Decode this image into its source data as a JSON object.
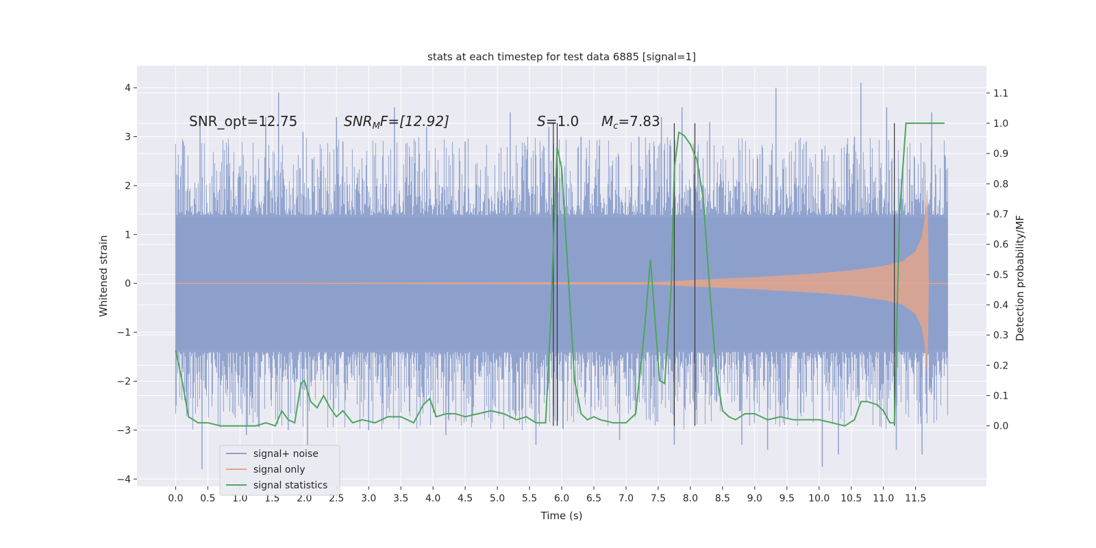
{
  "chart_data": {
    "type": "line",
    "title": "stats at each timestep for test data 6885 [signal=1]",
    "xlabel": "Time (s)",
    "ylabel": "Whitened strain",
    "ylabel_right": "Detection probability/MF",
    "xlim": [
      -0.6,
      12.6
    ],
    "ylim": [
      -4.15,
      4.45
    ],
    "ylim_right": [
      -0.2,
      1.19
    ],
    "x_ticks": [
      0.0,
      0.5,
      1.0,
      1.5,
      2.0,
      2.5,
      3.0,
      3.5,
      4.0,
      4.5,
      5.0,
      5.5,
      6.0,
      6.5,
      7.0,
      7.5,
      8.0,
      8.5,
      9.0,
      9.5,
      10.0,
      10.5,
      11.0,
      11.5
    ],
    "x_tick_labels": [
      "0.0",
      "0.5",
      "1.0",
      "1.5",
      "2.0",
      "2.5",
      "3.0",
      "3.5",
      "4.0",
      "4.5",
      "5.0",
      "5.5",
      "6.0",
      "6.5",
      "7.0",
      "7.5",
      "8.0",
      "8.5",
      "9.0",
      "9.5",
      "10.0",
      "10.5",
      "11.0",
      "11.5"
    ],
    "y_ticks": [
      -4,
      -3,
      -2,
      -1,
      0,
      1,
      2,
      3,
      4
    ],
    "y_tick_labels": [
      "−4",
      "−3",
      "−2",
      "−1",
      "0",
      "1",
      "2",
      "3",
      "4"
    ],
    "y_right_ticks": [
      0.0,
      0.1,
      0.2,
      0.3,
      0.4,
      0.5,
      0.6,
      0.7,
      0.8,
      0.9,
      1.0,
      1.1
    ],
    "y_right_tick_labels": [
      "0.0",
      "0.1",
      "0.2",
      "0.3",
      "0.4",
      "0.5",
      "0.6",
      "0.7",
      "0.8",
      "0.9",
      "1.0",
      "1.1"
    ],
    "grid": true,
    "legend_position": "lower-left",
    "annotations": {
      "snr_opt": "SNR_opt=12.75",
      "snr_mf_base": "SNR",
      "snr_mf_sub": "M",
      "snr_mf_rest": "F=[12.92]",
      "s_sym": "S",
      "s_rest": "=1.0",
      "mc_sym": "M",
      "mc_sub": "c",
      "mc_rest": "=7.83"
    },
    "vertical_lines_x": [
      5.87,
      5.93,
      7.75,
      8.07,
      11.17
    ],
    "series": [
      {
        "name": "signal+ noise",
        "color": "#8da0cb",
        "axis": "left",
        "x_range": [
          0.0,
          12.0
        ],
        "core_band": [
          -1.35,
          1.35
        ],
        "spike_x": [
          0.12,
          0.38,
          0.41,
          0.82,
          1.1,
          1.4,
          1.6,
          1.75,
          1.98,
          2.05,
          2.5,
          2.6,
          3.0,
          3.4,
          3.9,
          4.2,
          4.5,
          5.2,
          5.6,
          5.8,
          6.3,
          6.9,
          7.2,
          7.55,
          7.75,
          7.87,
          8.3,
          8.8,
          9.2,
          9.33,
          9.8,
          10.05,
          10.3,
          10.55,
          10.65,
          11.05,
          11.2,
          11.6,
          11.75
        ],
        "spike_y": [
          2.9,
          3.4,
          -3.8,
          2.8,
          -3.1,
          3.4,
          3.9,
          -3.0,
          3.1,
          -3.3,
          3.4,
          2.9,
          -3.0,
          3.6,
          3.2,
          -3.1,
          2.9,
          3.5,
          -3.3,
          3.2,
          3.0,
          -3.2,
          3.0,
          3.4,
          -3.3,
          3.6,
          3.3,
          -3.3,
          -3.4,
          4.0,
          2.9,
          -3.75,
          -3.5,
          3.0,
          4.1,
          3.6,
          -3.4,
          -3.5,
          3.5
        ]
      },
      {
        "name": "signal only",
        "color": "#e3a58c",
        "axis": "left",
        "x": [
          0.0,
          7.5,
          8.0,
          8.5,
          9.0,
          9.5,
          10.0,
          10.5,
          11.0,
          11.3,
          11.5,
          11.6,
          11.65,
          11.68,
          11.7,
          12.0
        ],
        "y_envelope": [
          0.0,
          0.02,
          0.06,
          0.09,
          0.12,
          0.16,
          0.2,
          0.26,
          0.35,
          0.45,
          0.65,
          0.95,
          1.35,
          1.9,
          0.0,
          0.0
        ]
      },
      {
        "name": "signal statistics",
        "color": "#4ea55c",
        "axis": "right",
        "x": [
          0.0,
          0.1,
          0.2,
          0.35,
          0.5,
          0.7,
          0.9,
          1.1,
          1.25,
          1.4,
          1.55,
          1.65,
          1.75,
          1.85,
          1.95,
          2.0,
          2.1,
          2.2,
          2.3,
          2.4,
          2.5,
          2.6,
          2.75,
          2.9,
          3.1,
          3.3,
          3.5,
          3.7,
          3.85,
          3.95,
          4.05,
          4.2,
          4.35,
          4.5,
          4.7,
          4.9,
          5.1,
          5.3,
          5.45,
          5.6,
          5.75,
          5.83,
          5.87,
          5.93,
          6.0,
          6.1,
          6.2,
          6.3,
          6.4,
          6.5,
          6.6,
          6.8,
          7.0,
          7.15,
          7.28,
          7.38,
          7.45,
          7.52,
          7.6,
          7.7,
          7.75,
          7.82,
          7.9,
          8.0,
          8.1,
          8.2,
          8.3,
          8.4,
          8.5,
          8.6,
          8.7,
          8.85,
          9.0,
          9.2,
          9.4,
          9.6,
          9.8,
          10.0,
          10.2,
          10.4,
          10.55,
          10.65,
          10.75,
          10.9,
          11.0,
          11.1,
          11.17,
          11.25,
          11.35,
          11.5,
          11.7,
          11.9,
          11.95
        ],
        "y": [
          0.25,
          0.15,
          0.03,
          0.01,
          0.01,
          0.0,
          0.0,
          0.0,
          0.0,
          0.01,
          0.0,
          0.05,
          0.02,
          0.01,
          0.14,
          0.15,
          0.08,
          0.06,
          0.1,
          0.06,
          0.03,
          0.05,
          0.01,
          0.02,
          0.01,
          0.03,
          0.03,
          0.01,
          0.07,
          0.09,
          0.03,
          0.04,
          0.04,
          0.03,
          0.04,
          0.05,
          0.04,
          0.02,
          0.03,
          0.01,
          0.01,
          0.35,
          0.6,
          0.92,
          0.85,
          0.5,
          0.15,
          0.04,
          0.02,
          0.03,
          0.02,
          0.01,
          0.01,
          0.04,
          0.3,
          0.55,
          0.35,
          0.15,
          0.14,
          0.45,
          0.85,
          0.97,
          0.96,
          0.93,
          0.88,
          0.75,
          0.45,
          0.18,
          0.05,
          0.03,
          0.02,
          0.04,
          0.04,
          0.02,
          0.03,
          0.02,
          0.02,
          0.02,
          0.01,
          0.0,
          0.02,
          0.08,
          0.08,
          0.07,
          0.05,
          0.01,
          0.01,
          0.7,
          1.0,
          1.0,
          1.0,
          1.0,
          1.0
        ]
      }
    ]
  }
}
